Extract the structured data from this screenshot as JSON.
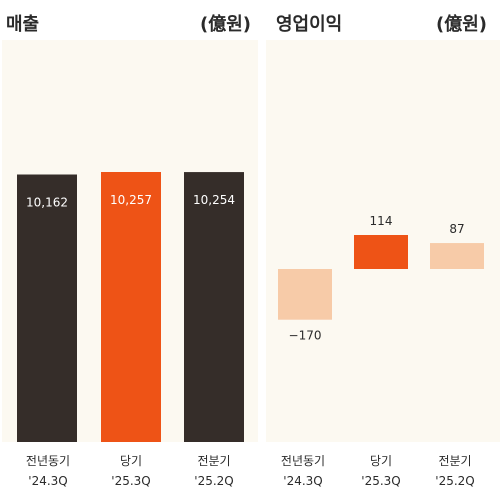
{
  "chart_data": [
    {
      "type": "bar",
      "title": "매출",
      "unit": "(億원)",
      "categories": [
        "전년동기",
        "당기",
        "전분기"
      ],
      "periods": [
        "'24.3Q",
        "'25.3Q",
        "'25.2Q"
      ],
      "values": [
        10162,
        10257,
        10254
      ],
      "value_labels": [
        "10,162",
        "10,257",
        "10,254"
      ],
      "colors": [
        "#352d29",
        "#ee5316",
        "#352d29"
      ],
      "label_colors": [
        "#ffffff",
        "#ffffff",
        "#ffffff"
      ],
      "ylim": [
        0,
        10257
      ],
      "grid": false
    },
    {
      "type": "bar",
      "title": "영업이익",
      "unit": "(億원)",
      "categories": [
        "전년동기",
        "당기",
        "전분기"
      ],
      "periods": [
        "'24.3Q",
        "'25.3Q",
        "'25.2Q"
      ],
      "values": [
        -170,
        114,
        87
      ],
      "value_labels": [
        "−170",
        "114",
        "87"
      ],
      "colors": [
        "#f7cba8",
        "#ee5316",
        "#f7cba8"
      ],
      "label_colors": [
        "#2b2b2b",
        "#2b2b2b",
        "#2b2b2b"
      ],
      "ylim": [
        -170,
        114
      ],
      "grid": false
    }
  ]
}
